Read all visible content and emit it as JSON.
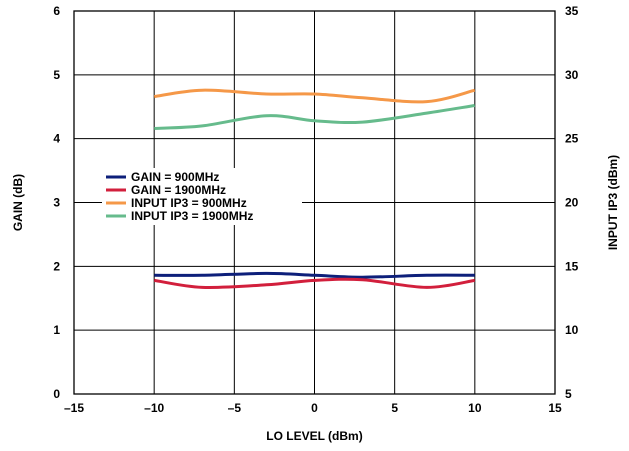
{
  "chart_data": {
    "type": "line",
    "xlabel": "LO LEVEL (dBm)",
    "ylabel_left": "GAIN (dB)",
    "ylabel_right": "INPUT IP3 (dBm)",
    "xlim": [
      -15,
      15
    ],
    "ylim_left": [
      0,
      6
    ],
    "ylim_right": [
      5,
      35
    ],
    "x_ticks": [
      -15,
      -10,
      -5,
      0,
      5,
      10,
      15
    ],
    "x_tick_labels": [
      "–15",
      "–10",
      "–5",
      "0",
      "5",
      "10",
      "15"
    ],
    "y_left_ticks": [
      0,
      1,
      2,
      3,
      4,
      5,
      6
    ],
    "y_left_tick_labels": [
      "0",
      "1",
      "2",
      "3",
      "4",
      "5",
      "6"
    ],
    "y_right_ticks": [
      5,
      10,
      15,
      20,
      25,
      30,
      35
    ],
    "y_right_tick_labels": [
      "5",
      "10",
      "15",
      "20",
      "25",
      "30",
      "35"
    ],
    "grid": true,
    "legend_placement": "center-left",
    "series": [
      {
        "name": "GAIN = 900MHz",
        "axis": "left",
        "color": "#0d1f7a",
        "x": [
          -10,
          -7,
          -3,
          0,
          3,
          7,
          10
        ],
        "y": [
          1.86,
          1.86,
          1.89,
          1.86,
          1.83,
          1.86,
          1.86
        ]
      },
      {
        "name": "GAIN = 1900MHz",
        "axis": "left",
        "color": "#d21f3c",
        "x": [
          -10,
          -7,
          -3,
          0,
          3,
          7,
          10
        ],
        "y": [
          1.78,
          1.67,
          1.71,
          1.78,
          1.79,
          1.67,
          1.78
        ]
      },
      {
        "name": "INPUT IP3 = 900MHz",
        "axis": "right",
        "color": "#f59848",
        "x": [
          -10,
          -7,
          -3,
          0,
          3,
          7,
          10
        ],
        "y": [
          28.3,
          28.8,
          28.5,
          28.5,
          28.2,
          27.9,
          28.8
        ]
      },
      {
        "name": "INPUT IP3 = 1900MHz",
        "axis": "right",
        "color": "#66bb8c",
        "x": [
          -10,
          -7,
          -3,
          0,
          3,
          7,
          10
        ],
        "y": [
          25.8,
          26.0,
          26.8,
          26.4,
          26.3,
          27.0,
          27.6
        ]
      }
    ]
  }
}
